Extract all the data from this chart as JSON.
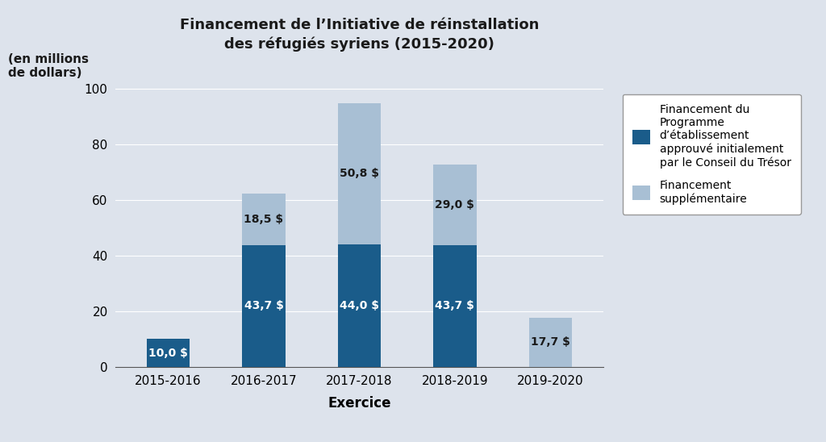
{
  "categories": [
    "2015-2016",
    "2016-2017",
    "2017-2018",
    "2018-2019",
    "2019-2020"
  ],
  "initial_funding": [
    10.0,
    43.7,
    44.0,
    43.7,
    0.0
  ],
  "supplementary_funding": [
    0.0,
    18.5,
    50.8,
    29.0,
    17.7
  ],
  "initial_labels": [
    "10,0 $",
    "43,7 $",
    "44,0 $",
    "43,7 $",
    ""
  ],
  "supplementary_labels": [
    "",
    "18,5 $",
    "50,8 $",
    "29,0 $",
    "17,7 $"
  ],
  "color_initial": "#1a5c8a",
  "color_supplementary": "#a8bfd4",
  "background_color": "#dde3ec",
  "title_line1": "Financement de l’Initiative de réinstallation",
  "title_line2": "des réfugiés syriens (2015-2020)",
  "ylabel_text": "(en millions\nde dollars)",
  "xlabel": "Exercice",
  "ylim": [
    0,
    100
  ],
  "yticks": [
    0,
    20,
    40,
    60,
    80,
    100
  ],
  "legend_label1": "Financement du\nProgramme\nd’établissement\napprouvé initialement\npar le Conseil du Trésor",
  "legend_label2": "Financement\nsupplémentaire",
  "bar_width": 0.45
}
